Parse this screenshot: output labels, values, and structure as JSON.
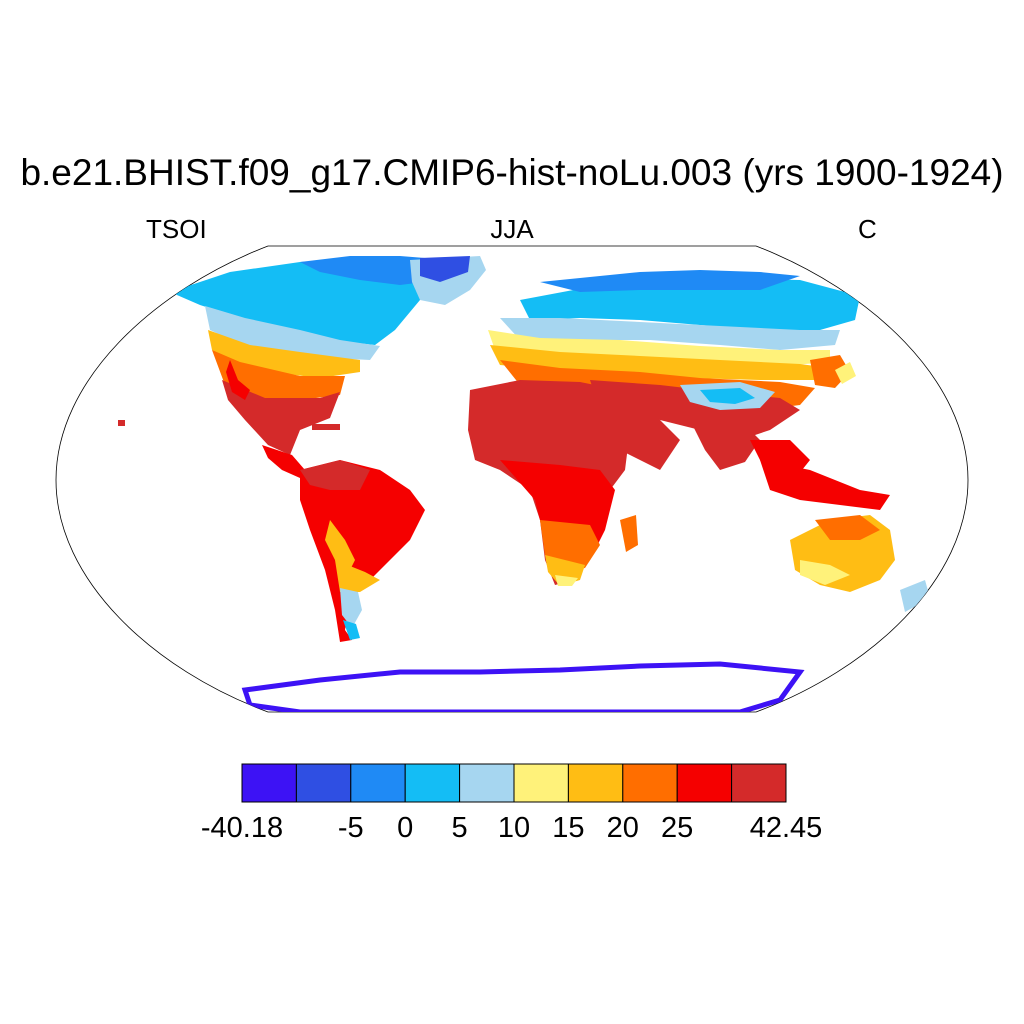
{
  "title": "b.e21.BHIST.f09_g17.CMIP6-hist-noLu.003 (yrs 1900-1924)",
  "left_label": "TSOI",
  "center_label": "JJA",
  "right_label": "C",
  "projection": "Robinson",
  "colorbar": {
    "colors": [
      "#3d12f5",
      "#2f4fe3",
      "#1f8af5",
      "#14bdf5",
      "#a6d6f0",
      "#fff27a",
      "#ffbd14",
      "#ff6e00",
      "#f50000",
      "#d42a2a"
    ],
    "labels": [
      "-40.18",
      "-5",
      "0",
      "5",
      "10",
      "15",
      "20",
      "25",
      "42.45"
    ],
    "label_boundaries": [
      0,
      2,
      3,
      4,
      5,
      6,
      7,
      8,
      10
    ]
  },
  "regions_icon_names": [
    "world-map-land-icon"
  ]
}
